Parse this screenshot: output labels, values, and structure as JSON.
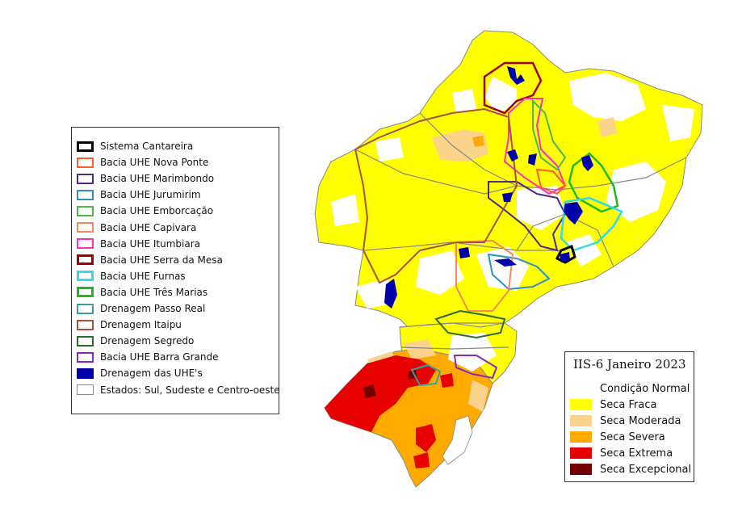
{
  "colors": {
    "normal": "#ffffff",
    "fraca": "#ffff00",
    "moderada": "#fcd38b",
    "severa": "#ffaa00",
    "extrema": "#e60000",
    "excepcional": "#730000",
    "state_border": "#888888"
  },
  "basin_legend": {
    "items": [
      {
        "label": "Sistema Cantareira",
        "color": "#000000",
        "width": 3
      },
      {
        "label": "Bacia UHE Nova Ponte",
        "color": "#ff5a2e",
        "width": 2
      },
      {
        "label": "Bacia UHE Marimbondo",
        "color": "#4b2a8a",
        "width": 2
      },
      {
        "label": "Bacia UHE Jurumirim",
        "color": "#2f8fbf",
        "width": 2
      },
      {
        "label": "Bacia UHE Emborcação",
        "color": "#4cb84c",
        "width": 2
      },
      {
        "label": "Bacia UHE Capivara",
        "color": "#f28a5a",
        "width": 2
      },
      {
        "label": "Bacia UHE Itumbiara",
        "color": "#ff2fb9",
        "width": 2
      },
      {
        "label": "Bacia UHE Serra da Mesa",
        "color": "#a30000",
        "width": 3
      },
      {
        "label": "Bacia UHE Furnas",
        "color": "#33d9e6",
        "width": 3
      },
      {
        "label": "Bacia UHE Três Marias",
        "color": "#1fb81f",
        "width": 3
      },
      {
        "label": "Drenagem Passo Real",
        "color": "#3a9e9e",
        "width": 2
      },
      {
        "label": "Drenagem Itaipu",
        "color": "#a5533a",
        "width": 2
      },
      {
        "label": "Drenagem Segredo",
        "color": "#2a6a2a",
        "width": 2
      },
      {
        "label": "Bacia UHE Barra Grande",
        "color": "#8a2ab0",
        "width": 2
      },
      {
        "label": "Drenagem das UHE's",
        "color": "#0000aa",
        "width": 0,
        "fill": true
      },
      {
        "label": "Estados: Sul, Sudeste e Centro-oeste",
        "color": "#888888",
        "width": 1
      }
    ]
  },
  "drought_legend": {
    "title": "IIS-6 Janeiro 2023",
    "items": [
      {
        "label": "Condição Normal",
        "color": "#ffffff"
      },
      {
        "label": "Seca Fraca",
        "color": "#ffff00"
      },
      {
        "label": "Seca Moderada",
        "color": "#fcd38b"
      },
      {
        "label": "Seca Severa",
        "color": "#ffaa00"
      },
      {
        "label": "Seca Extrema",
        "color": "#e60000"
      },
      {
        "label": "Seca Excepcional",
        "color": "#730000"
      }
    ]
  }
}
